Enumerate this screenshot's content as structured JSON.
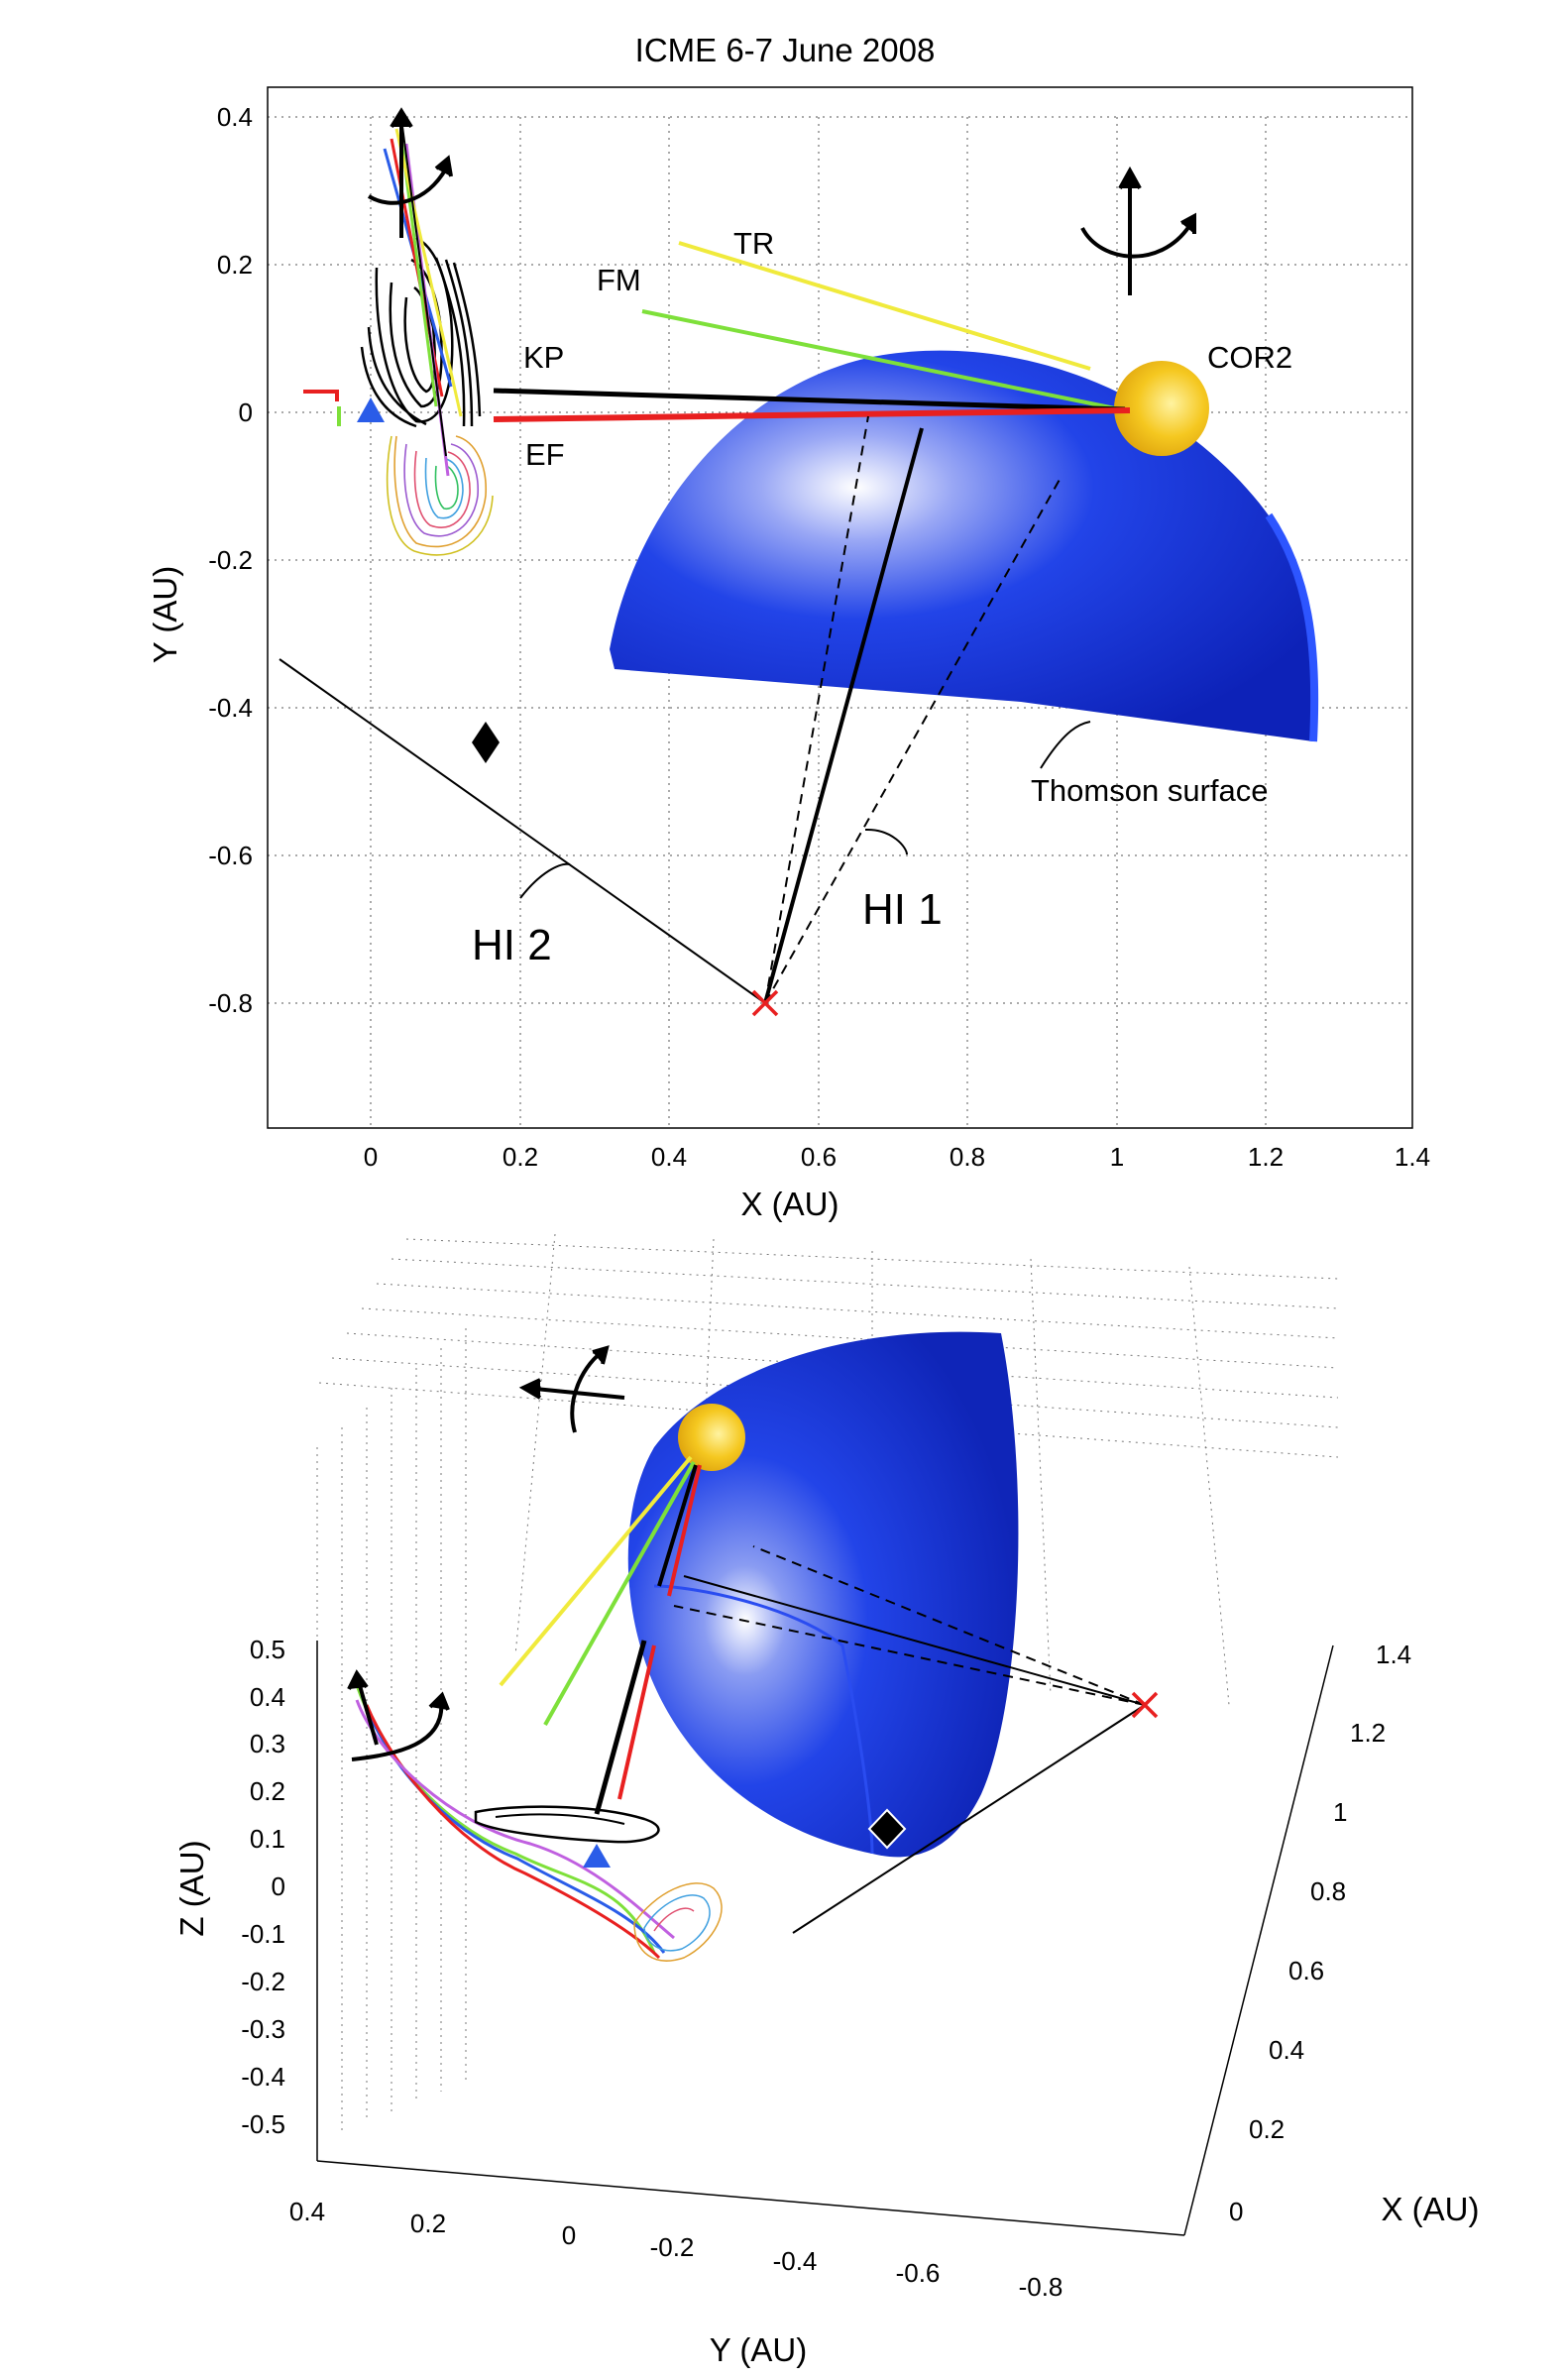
{
  "title": "ICME  6-7 June 2008",
  "top_panel": {
    "xlabel": "X (AU)",
    "ylabel": "Y (AU)",
    "xticks": [
      "0",
      "0.2",
      "0.4",
      "0.6",
      "0.8",
      "1",
      "1.2",
      "1.4"
    ],
    "yticks": [
      "0.4",
      "0.2",
      "0",
      "-0.2",
      "-0.4",
      "-0.6",
      "-0.8"
    ],
    "labels": {
      "tr": "TR",
      "fm": "FM",
      "kp": "KP",
      "ef": "EF",
      "cor2": "COR2",
      "thomson": "Thomson surface",
      "hi1": "HI 1",
      "hi2": "HI 2"
    }
  },
  "bottom_panel": {
    "xlabel": "X (AU)",
    "ylabel": "Y (AU)",
    "zlabel": "Z (AU)",
    "zticks": [
      "0.5",
      "0.4",
      "0.3",
      "0.2",
      "0.1",
      "0",
      "-0.1",
      "-0.2",
      "-0.3",
      "-0.4",
      "-0.5"
    ],
    "yticks": [
      "0.4",
      "0.2",
      "0",
      "-0.2",
      "-0.4",
      "-0.6",
      "-0.8"
    ],
    "xticks": [
      "1.4",
      "1.2",
      "1",
      "0.8",
      "0.6",
      "0.4",
      "0.2",
      "0"
    ]
  },
  "colors": {
    "sphere": "#1f3fe0",
    "sun": "#f2c418",
    "tr": "#f0ea3c",
    "fm": "#7ee03a",
    "kp": "#000000",
    "ef": "#e82020",
    "marker_x": "#e82020",
    "triangle": "#2a5ce8"
  }
}
